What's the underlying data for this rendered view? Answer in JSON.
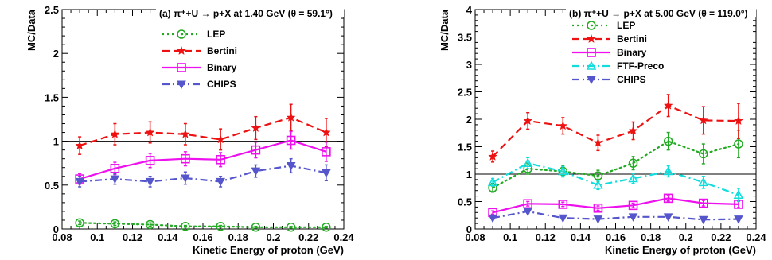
{
  "chart_data": [
    {
      "type": "line",
      "title": "(a) π⁺+U → p+X at 1.40 GeV (θ = 59.1°)",
      "xlabel": "Kinetic Energy of proton (GeV)",
      "ylabel": "MC/Data",
      "xlim": [
        0.08,
        0.24
      ],
      "ylim": [
        0,
        2.5
      ],
      "xticks": [
        "0.08",
        "0.1",
        "0.12",
        "0.14",
        "0.16",
        "0.18",
        "0.2",
        "0.22",
        "0.24"
      ],
      "yticks": [
        "0",
        "0.5",
        "1",
        "1.5",
        "2",
        "2.5"
      ],
      "reference_line": 1,
      "x": [
        0.09,
        0.11,
        0.13,
        0.15,
        0.17,
        0.19,
        0.21,
        0.23
      ],
      "legend_placement": "top-right",
      "series": [
        {
          "name": "LEP",
          "color": "#22aa22",
          "marker": "circle-dot",
          "dash": "2,4",
          "values": [
            0.07,
            0.06,
            0.05,
            0.03,
            0.03,
            0.02,
            0.02,
            0.02
          ],
          "errors": [
            0.02,
            0.02,
            0.02,
            0.01,
            0.01,
            0.01,
            0.01,
            0.01
          ]
        },
        {
          "name": "Bertini",
          "color": "#ee1111",
          "marker": "star",
          "dash": "9,5",
          "values": [
            0.95,
            1.08,
            1.1,
            1.08,
            1.02,
            1.15,
            1.27,
            1.1
          ],
          "errors": [
            0.1,
            0.12,
            0.12,
            0.12,
            0.12,
            0.13,
            0.15,
            0.16
          ]
        },
        {
          "name": "Binary",
          "color": "#ee11ee",
          "marker": "square",
          "dash": "",
          "values": [
            0.57,
            0.69,
            0.78,
            0.8,
            0.79,
            0.9,
            1.01,
            0.88
          ],
          "errors": [
            0.06,
            0.07,
            0.08,
            0.08,
            0.08,
            0.09,
            0.1,
            0.11
          ]
        },
        {
          "name": "CHIPS",
          "color": "#5555cc",
          "marker": "triangle-down",
          "dash": "9,4,2,4",
          "values": [
            0.54,
            0.57,
            0.54,
            0.58,
            0.54,
            0.66,
            0.72,
            0.64
          ],
          "errors": [
            0.06,
            0.06,
            0.06,
            0.07,
            0.06,
            0.07,
            0.08,
            0.09
          ]
        }
      ]
    },
    {
      "type": "line",
      "title": "(b) π⁺+U → p+X at 5.00 GeV (θ = 119.0°)",
      "xlabel": "Kinetic Energy of proton (GeV)",
      "ylabel": "MC/Data",
      "xlim": [
        0.08,
        0.24
      ],
      "ylim": [
        0,
        4
      ],
      "xticks": [
        "0.08",
        "0.1",
        "0.12",
        "0.14",
        "0.16",
        "0.18",
        "0.2",
        "0.22",
        "0.24"
      ],
      "yticks": [
        "0",
        "0.5",
        "1",
        "1.5",
        "2",
        "2.5",
        "3",
        "3.5",
        "4"
      ],
      "reference_line": 1,
      "x": [
        0.09,
        0.11,
        0.13,
        0.15,
        0.17,
        0.19,
        0.21,
        0.23
      ],
      "legend_placement": "top-right",
      "series": [
        {
          "name": "LEP",
          "color": "#22aa22",
          "marker": "circle-dot",
          "dash": "2,4",
          "values": [
            0.75,
            1.1,
            1.05,
            0.97,
            1.2,
            1.6,
            1.37,
            1.55
          ],
          "errors": [
            0.08,
            0.1,
            0.1,
            0.1,
            0.12,
            0.16,
            0.18,
            0.25
          ]
        },
        {
          "name": "Bertini",
          "color": "#ee1111",
          "marker": "star",
          "dash": "9,5",
          "values": [
            1.32,
            1.97,
            1.88,
            1.57,
            1.79,
            2.25,
            1.98,
            1.97
          ],
          "errors": [
            0.1,
            0.15,
            0.15,
            0.14,
            0.16,
            0.2,
            0.25,
            0.32
          ]
        },
        {
          "name": "Binary",
          "color": "#ee11ee",
          "marker": "square",
          "dash": "",
          "values": [
            0.3,
            0.46,
            0.45,
            0.38,
            0.43,
            0.56,
            0.47,
            0.45
          ],
          "errors": [
            0.03,
            0.04,
            0.04,
            0.04,
            0.04,
            0.05,
            0.05,
            0.06
          ]
        },
        {
          "name": "FTF-Preco",
          "color": "#11dddd",
          "marker": "triangle-up",
          "dash": "9,4,2,4",
          "values": [
            0.85,
            1.2,
            1.05,
            0.8,
            0.92,
            1.05,
            0.85,
            0.62
          ],
          "errors": [
            0.07,
            0.1,
            0.09,
            0.08,
            0.09,
            0.1,
            0.11,
            0.12
          ]
        },
        {
          "name": "CHIPS",
          "color": "#5555cc",
          "marker": "triangle-down",
          "dash": "9,4,2,4",
          "values": [
            0.2,
            0.32,
            0.2,
            0.18,
            0.22,
            0.22,
            0.17,
            0.18
          ],
          "errors": [
            0.02,
            0.03,
            0.02,
            0.02,
            0.02,
            0.02,
            0.02,
            0.02
          ]
        }
      ]
    }
  ]
}
